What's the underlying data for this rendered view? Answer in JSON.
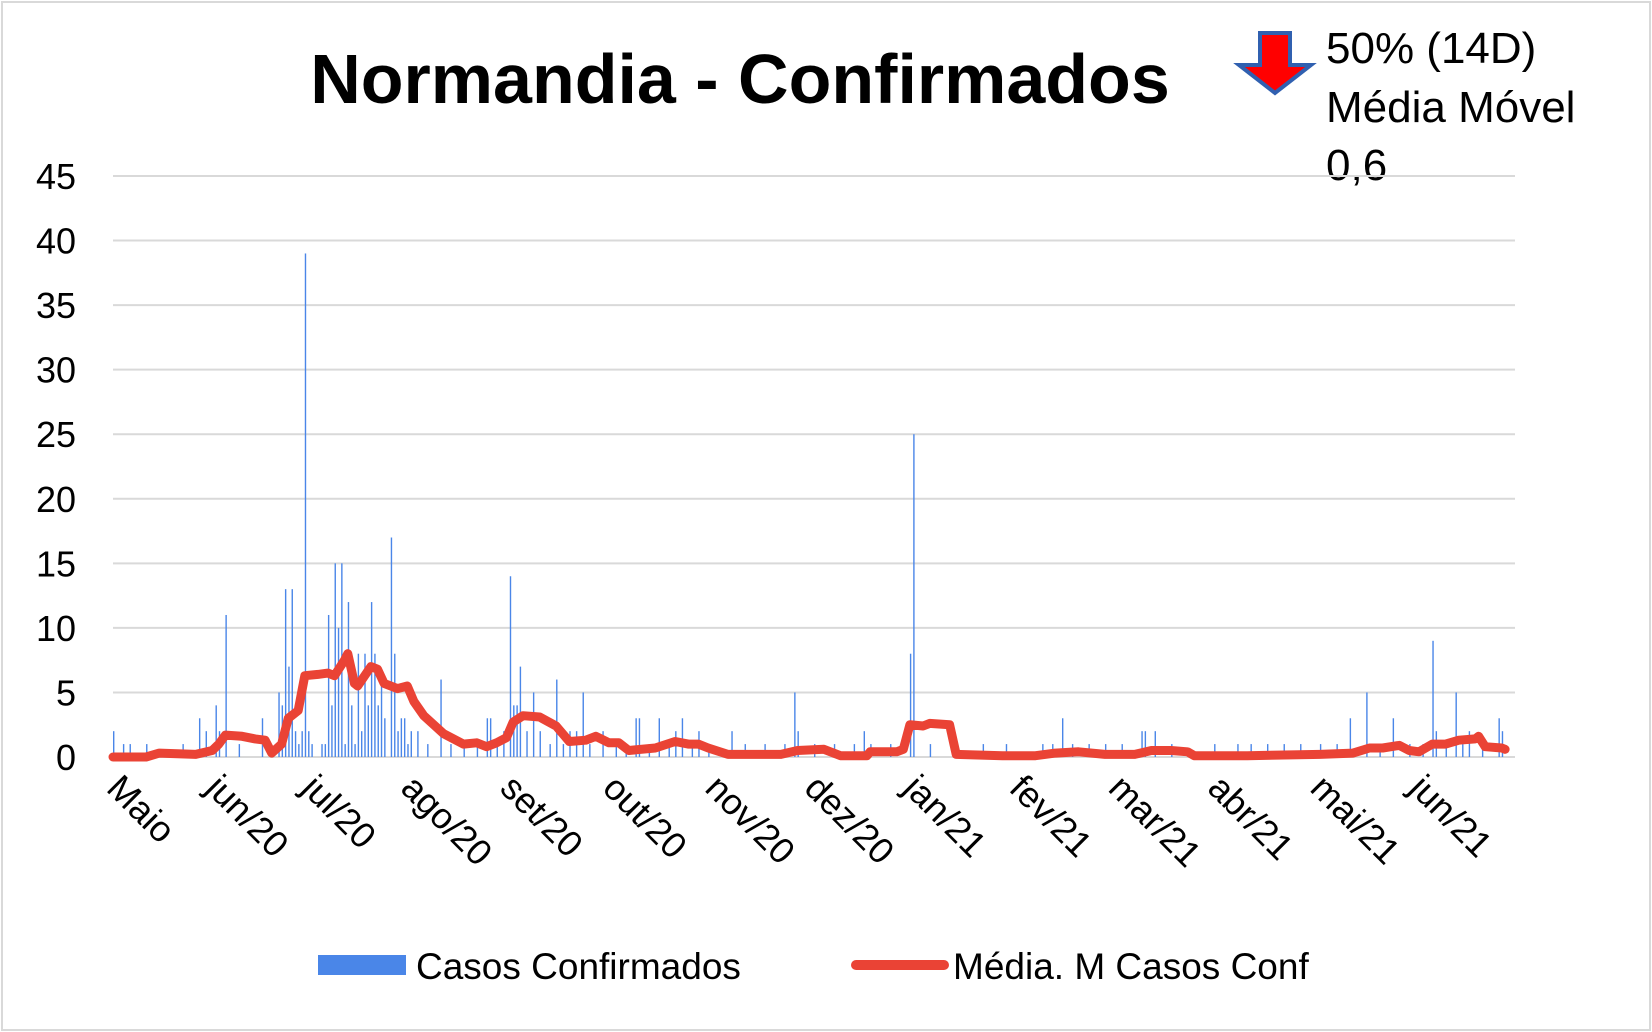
{
  "chart_data": {
    "type": "bar+line",
    "title": "Normandia - Confirmados",
    "annotation": {
      "arrow_icon": "down-arrow-icon",
      "lines": [
        "50% (14D)",
        "Média Móvel",
        "0,6"
      ]
    },
    "xlabel": "",
    "ylabel": "",
    "ylim": [
      0,
      45
    ],
    "yticks": [
      "0",
      "5",
      "10",
      "15",
      "20",
      "25",
      "30",
      "35",
      "40",
      "45"
    ],
    "ytick_values": [
      0,
      5,
      10,
      15,
      20,
      25,
      30,
      35,
      40,
      45
    ],
    "x_unit": "days since 1 May 2020",
    "xlim": [
      0,
      424
    ],
    "xticks": [
      {
        "day": 0,
        "label": "Maio"
      },
      {
        "day": 30,
        "label": "jun/20"
      },
      {
        "day": 59,
        "label": "jul/20"
      },
      {
        "day": 89,
        "label": "ago/20"
      },
      {
        "day": 119,
        "label": "set/20"
      },
      {
        "day": 150,
        "label": "out/20"
      },
      {
        "day": 181,
        "label": "nov/20"
      },
      {
        "day": 211,
        "label": "dez/20"
      },
      {
        "day": 241,
        "label": "jan/21"
      },
      {
        "day": 273,
        "label": "fev/21"
      },
      {
        "day": 303,
        "label": "mar/21"
      },
      {
        "day": 333,
        "label": "abr/21"
      },
      {
        "day": 364,
        "label": "mai/21"
      },
      {
        "day": 394,
        "label": "jun/21"
      }
    ],
    "grid": true,
    "legend_position": "bottom",
    "series": [
      {
        "name": "Casos Confirmados",
        "kind": "bar",
        "color": "#4a86e8",
        "points": [
          [
            0,
            2
          ],
          [
            3,
            1
          ],
          [
            5,
            1
          ],
          [
            10,
            1
          ],
          [
            21,
            1
          ],
          [
            26,
            3
          ],
          [
            28,
            2
          ],
          [
            31,
            4
          ],
          [
            32,
            2
          ],
          [
            34,
            11
          ],
          [
            38,
            1
          ],
          [
            45,
            3
          ],
          [
            50,
            5
          ],
          [
            51,
            4
          ],
          [
            52,
            13
          ],
          [
            53,
            7
          ],
          [
            54,
            13
          ],
          [
            55,
            2
          ],
          [
            56,
            1
          ],
          [
            57,
            2
          ],
          [
            58,
            39
          ],
          [
            59,
            2
          ],
          [
            60,
            1
          ],
          [
            63,
            1
          ],
          [
            64,
            1
          ],
          [
            65,
            11
          ],
          [
            66,
            4
          ],
          [
            67,
            15
          ],
          [
            68,
            10
          ],
          [
            69,
            15
          ],
          [
            70,
            1
          ],
          [
            71,
            12
          ],
          [
            72,
            4
          ],
          [
            73,
            1
          ],
          [
            74,
            8
          ],
          [
            75,
            2
          ],
          [
            76,
            8
          ],
          [
            77,
            4
          ],
          [
            78,
            12
          ],
          [
            79,
            8
          ],
          [
            80,
            4
          ],
          [
            81,
            6
          ],
          [
            82,
            3
          ],
          [
            84,
            17
          ],
          [
            85,
            8
          ],
          [
            86,
            2
          ],
          [
            87,
            3
          ],
          [
            88,
            3
          ],
          [
            89,
            1
          ],
          [
            90,
            2
          ],
          [
            92,
            2
          ],
          [
            95,
            1
          ],
          [
            99,
            6
          ],
          [
            102,
            1
          ],
          [
            106,
            1
          ],
          [
            110,
            1
          ],
          [
            113,
            3
          ],
          [
            114,
            3
          ],
          [
            116,
            1
          ],
          [
            118,
            2
          ],
          [
            120,
            14
          ],
          [
            121,
            4
          ],
          [
            122,
            4
          ],
          [
            123,
            7
          ],
          [
            125,
            2
          ],
          [
            127,
            5
          ],
          [
            129,
            2
          ],
          [
            132,
            1
          ],
          [
            134,
            6
          ],
          [
            136,
            1
          ],
          [
            138,
            2
          ],
          [
            140,
            2
          ],
          [
            142,
            5
          ],
          [
            144,
            1
          ],
          [
            148,
            2
          ],
          [
            152,
            1
          ],
          [
            155,
            1
          ],
          [
            158,
            3
          ],
          [
            159,
            3
          ],
          [
            162,
            1
          ],
          [
            165,
            3
          ],
          [
            168,
            1
          ],
          [
            170,
            2
          ],
          [
            172,
            3
          ],
          [
            175,
            1
          ],
          [
            177,
            2
          ],
          [
            180,
            1
          ],
          [
            187,
            2
          ],
          [
            191,
            1
          ],
          [
            197,
            1
          ],
          [
            203,
            1
          ],
          [
            206,
            5
          ],
          [
            207,
            2
          ],
          [
            212,
            1
          ],
          [
            218,
            1
          ],
          [
            224,
            1
          ],
          [
            227,
            2
          ],
          [
            229,
            1
          ],
          [
            235,
            1
          ],
          [
            241,
            8
          ],
          [
            242,
            25
          ],
          [
            247,
            1
          ],
          [
            255,
            1
          ],
          [
            263,
            1
          ],
          [
            270,
            1
          ],
          [
            281,
            1
          ],
          [
            284,
            1
          ],
          [
            287,
            3
          ],
          [
            290,
            1
          ],
          [
            295,
            1
          ],
          [
            300,
            1
          ],
          [
            305,
            1
          ],
          [
            311,
            2
          ],
          [
            312,
            2
          ],
          [
            315,
            2
          ],
          [
            320,
            1
          ],
          [
            333,
            1
          ],
          [
            340,
            1
          ],
          [
            344,
            1
          ],
          [
            349,
            1
          ],
          [
            354,
            1
          ],
          [
            359,
            1
          ],
          [
            365,
            1
          ],
          [
            370,
            1
          ],
          [
            374,
            3
          ],
          [
            379,
            5
          ],
          [
            383,
            1
          ],
          [
            387,
            3
          ],
          [
            392,
            1
          ],
          [
            396,
            1
          ],
          [
            399,
            9
          ],
          [
            400,
            2
          ],
          [
            403,
            1
          ],
          [
            406,
            5
          ],
          [
            408,
            1
          ],
          [
            410,
            2
          ],
          [
            414,
            1
          ],
          [
            419,
            3
          ],
          [
            420,
            2
          ]
        ]
      },
      {
        "name": "Média. M Casos Conf",
        "kind": "line",
        "color": "#ea4335",
        "points": [
          [
            0,
            0
          ],
          [
            10,
            0
          ],
          [
            14,
            0.3
          ],
          [
            25,
            0.2
          ],
          [
            30,
            0.5
          ],
          [
            32,
            1
          ],
          [
            34,
            1.7
          ],
          [
            39,
            1.6
          ],
          [
            43,
            1.4
          ],
          [
            46,
            1.3
          ],
          [
            48,
            0.3
          ],
          [
            51,
            1
          ],
          [
            53,
            3
          ],
          [
            56,
            3.6
          ],
          [
            58,
            6.3
          ],
          [
            62,
            6.4
          ],
          [
            65,
            6.5
          ],
          [
            67,
            6.3
          ],
          [
            70,
            7.5
          ],
          [
            71,
            8
          ],
          [
            73,
            5.7
          ],
          [
            74,
            5.5
          ],
          [
            78,
            7
          ],
          [
            80,
            6.8
          ],
          [
            82,
            5.7
          ],
          [
            86,
            5.3
          ],
          [
            89,
            5.5
          ],
          [
            91,
            4.3
          ],
          [
            94,
            3.2
          ],
          [
            97,
            2.5
          ],
          [
            100,
            1.8
          ],
          [
            106,
            1
          ],
          [
            110,
            1.1
          ],
          [
            113,
            0.8
          ],
          [
            116,
            1.1
          ],
          [
            119,
            1.5
          ],
          [
            121,
            2.7
          ],
          [
            124,
            3.2
          ],
          [
            129,
            3.1
          ],
          [
            134,
            2.4
          ],
          [
            138,
            1.2
          ],
          [
            143,
            1.3
          ],
          [
            146,
            1.6
          ],
          [
            150,
            1.1
          ],
          [
            153,
            1.1
          ],
          [
            156,
            0.5
          ],
          [
            164,
            0.7
          ],
          [
            170,
            1.2
          ],
          [
            174,
            1
          ],
          [
            177,
            1
          ],
          [
            180,
            0.7
          ],
          [
            186,
            0.2
          ],
          [
            202,
            0.2
          ],
          [
            207,
            0.5
          ],
          [
            215,
            0.6
          ],
          [
            220,
            0.1
          ],
          [
            228,
            0.1
          ],
          [
            229,
            0.4
          ],
          [
            237,
            0.4
          ],
          [
            239,
            0.6
          ],
          [
            241,
            2.5
          ],
          [
            245,
            2.4
          ],
          [
            247,
            2.6
          ],
          [
            253,
            2.5
          ],
          [
            255,
            0.2
          ],
          [
            269,
            0.1
          ],
          [
            279,
            0.1
          ],
          [
            285,
            0.3
          ],
          [
            292,
            0.4
          ],
          [
            300,
            0.2
          ],
          [
            309,
            0.2
          ],
          [
            314,
            0.5
          ],
          [
            320,
            0.5
          ],
          [
            325,
            0.4
          ],
          [
            327,
            0.1
          ],
          [
            343,
            0.1
          ],
          [
            365,
            0.2
          ],
          [
            375,
            0.3
          ],
          [
            380,
            0.7
          ],
          [
            384,
            0.7
          ],
          [
            389,
            0.9
          ],
          [
            392,
            0.5
          ],
          [
            395,
            0.4
          ],
          [
            399,
            1
          ],
          [
            403,
            1
          ],
          [
            407,
            1.3
          ],
          [
            412,
            1.4
          ],
          [
            413,
            1.6
          ],
          [
            415,
            0.8
          ],
          [
            420,
            0.7
          ],
          [
            421,
            0.6
          ]
        ]
      }
    ]
  }
}
